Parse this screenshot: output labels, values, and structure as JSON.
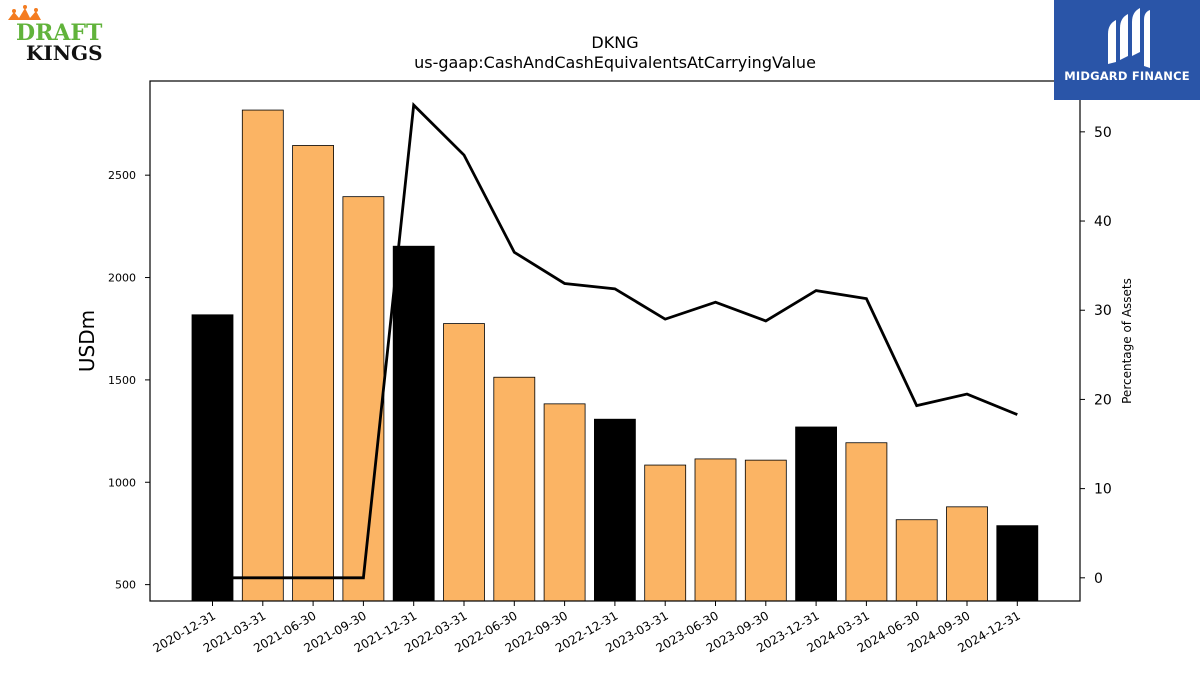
{
  "logos": {
    "left_brand_line1": "DRAFT",
    "left_brand_line2": "KINGS",
    "right_brand": "MIDGARD FINANCE",
    "right_bg_color": "#2a55a8"
  },
  "chart_data": {
    "type": "bar",
    "title": "DKNG",
    "subtitle": "us-gaap:CashAndCashEquivalentsAtCarryingValue",
    "ylabel": "USDm",
    "ylabel_right": "Percentage of Assets",
    "categories": [
      "2020-12-31",
      "2021-03-31",
      "2021-06-30",
      "2021-09-30",
      "2021-12-31",
      "2022-03-31",
      "2022-06-30",
      "2022-09-30",
      "2022-12-31",
      "2023-03-31",
      "2023-06-30",
      "2023-09-30",
      "2023-12-31",
      "2024-03-31",
      "2024-06-30",
      "2024-09-30",
      "2024-12-31"
    ],
    "series": [
      {
        "type": "bar",
        "axis": "left",
        "values": [
          1818,
          2818,
          2645,
          2395,
          2153,
          1775,
          1513,
          1383,
          1308,
          1084,
          1114,
          1108,
          1270,
          1193,
          817,
          880,
          788
        ],
        "colors": [
          "#000000",
          "#fbb464",
          "#fbb464",
          "#fbb464",
          "#000000",
          "#fbb464",
          "#fbb464",
          "#fbb464",
          "#000000",
          "#fbb464",
          "#fbb464",
          "#fbb464",
          "#000000",
          "#fbb464",
          "#fbb464",
          "#fbb464",
          "#000000"
        ]
      },
      {
        "type": "line",
        "axis": "right",
        "color": "#000000",
        "values": [
          0,
          0,
          0,
          0,
          53.0,
          47.4,
          36.5,
          33.0,
          32.4,
          29.0,
          30.9,
          28.8,
          32.2,
          31.3,
          19.3,
          20.6,
          18.3
        ]
      }
    ],
    "ylim": [
      420,
      2960
    ],
    "yticks": [
      500,
      1000,
      1500,
      2000,
      2500
    ],
    "ylim_right": [
      -2.6,
      55.7
    ],
    "yticks_right": [
      0,
      10,
      20,
      30,
      40,
      50
    ],
    "grid": false,
    "legend": "none"
  }
}
